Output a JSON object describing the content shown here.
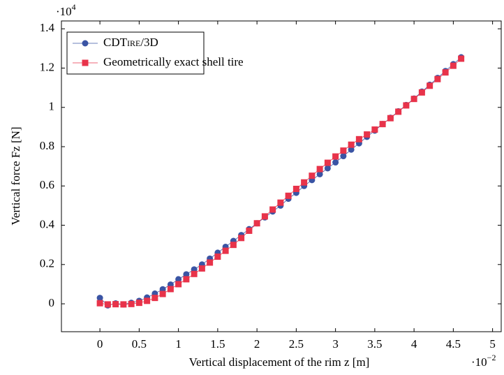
{
  "chart_data": {
    "type": "line",
    "xlabel": "Vertical displacement of the rim z [m]",
    "ylabel": "Vertical force Fz [N]",
    "x_multiplier": {
      "base": "·10",
      "exponent": "−2"
    },
    "y_multiplier": {
      "base": "·10",
      "exponent": "4"
    },
    "x": [
      0,
      0.1,
      0.2,
      0.3,
      0.4,
      0.5,
      0.6,
      0.7,
      0.8,
      0.9,
      1.0,
      1.1,
      1.2,
      1.3,
      1.4,
      1.5,
      1.6,
      1.7,
      1.8,
      1.9,
      2.0,
      2.1,
      2.2,
      2.3,
      2.4,
      2.5,
      2.6,
      2.7,
      2.8,
      2.9,
      3.0,
      3.1,
      3.2,
      3.3,
      3.4,
      3.5,
      3.6,
      3.7,
      3.8,
      3.9,
      4.0,
      4.1,
      4.2,
      4.3,
      4.4,
      4.5,
      4.6
    ],
    "series": [
      {
        "name": "CDTire/3D",
        "color": "#3a54a4",
        "marker": "circle",
        "values": [
          0.03,
          -0.008,
          0.002,
          -0.003,
          0.005,
          0.015,
          0.032,
          0.052,
          0.074,
          0.098,
          0.125,
          0.15,
          0.175,
          0.2,
          0.23,
          0.26,
          0.29,
          0.32,
          0.35,
          0.38,
          0.41,
          0.44,
          0.47,
          0.5,
          0.535,
          0.565,
          0.6,
          0.63,
          0.66,
          0.69,
          0.72,
          0.752,
          0.785,
          0.817,
          0.85,
          0.882,
          0.915,
          0.947,
          0.98,
          1.012,
          1.045,
          1.08,
          1.115,
          1.15,
          1.185,
          1.22,
          1.255
        ]
      },
      {
        "name": "Geometrically exact shell tire",
        "color": "#e8334a",
        "marker": "square",
        "values": [
          0.003,
          -0.003,
          -0.002,
          -0.003,
          -0.001,
          0.005,
          0.015,
          0.03,
          0.05,
          0.075,
          0.1,
          0.125,
          0.152,
          0.18,
          0.21,
          0.24,
          0.27,
          0.3,
          0.335,
          0.372,
          0.41,
          0.445,
          0.48,
          0.515,
          0.55,
          0.585,
          0.618,
          0.652,
          0.686,
          0.718,
          0.75,
          0.78,
          0.81,
          0.838,
          0.862,
          0.887,
          0.915,
          0.945,
          0.978,
          1.01,
          1.043,
          1.076,
          1.11,
          1.144,
          1.178,
          1.212,
          1.248
        ]
      }
    ],
    "xlim": [
      -0.49,
      5.11
    ],
    "ylim": [
      -0.142,
      1.44
    ],
    "xticks": [
      0,
      0.5,
      1,
      1.5,
      2,
      2.5,
      3,
      3.5,
      4,
      4.5,
      5
    ],
    "yticks": [
      0,
      0.2,
      0.4,
      0.6,
      0.8,
      1,
      1.2,
      1.4
    ],
    "legend": "top-left"
  }
}
